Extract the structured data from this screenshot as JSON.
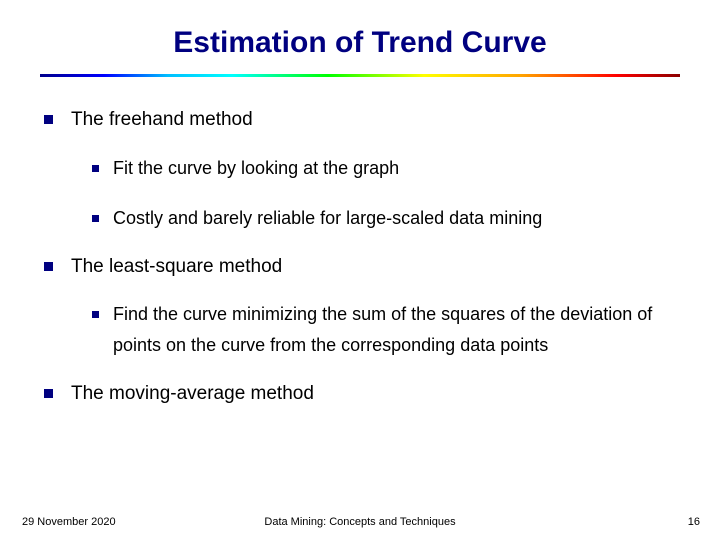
{
  "title": "Estimation of Trend Curve",
  "colors": {
    "title_color": "#000080",
    "bullet_color": "#000080",
    "text_color": "#000000",
    "background": "#ffffff"
  },
  "typography": {
    "title_fontsize": 30,
    "l1_fontsize": 19,
    "l2_fontsize": 18,
    "footer_fontsize": 11
  },
  "bullets": [
    {
      "level": 1,
      "text": "The freehand method"
    },
    {
      "level": 2,
      "text": "Fit the curve by looking at the graph"
    },
    {
      "level": 2,
      "text": "Costly and barely reliable for large-scaled data mining"
    },
    {
      "level": 1,
      "text": "The least-square method"
    },
    {
      "level": 2,
      "text": "Find the curve minimizing the sum of the squares of the deviation of points on the curve from the corresponding data points"
    },
    {
      "level": 1,
      "text": "The moving-average method"
    }
  ],
  "footer": {
    "date": "29 November 2020",
    "center": "Data Mining: Concepts and Techniques",
    "page": "16"
  }
}
